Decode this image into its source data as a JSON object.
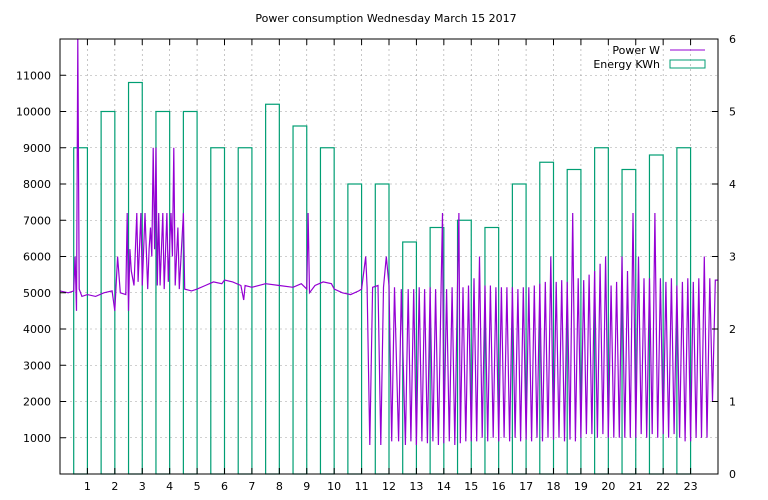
{
  "chart_data": {
    "type": "line",
    "title": "Power consumption Wednesday March 15 2017",
    "xlabel": "",
    "ylabel": "",
    "y2label": "",
    "grid": true,
    "legend_position": "top-right",
    "xlim": [
      0,
      24
    ],
    "ylim": [
      0,
      12000
    ],
    "y2lim": [
      0,
      6
    ],
    "x_ticks": [
      1,
      2,
      3,
      4,
      5,
      6,
      7,
      8,
      9,
      10,
      11,
      12,
      13,
      14,
      15,
      16,
      17,
      18,
      19,
      20,
      21,
      22,
      23
    ],
    "y_ticks": [
      1000,
      2000,
      3000,
      4000,
      5000,
      6000,
      7000,
      8000,
      9000,
      10000,
      11000
    ],
    "y2_ticks": [
      0,
      1,
      2,
      3,
      4,
      5,
      6
    ],
    "series": [
      {
        "name": "Power W",
        "axis": "y",
        "color": "#9400d3",
        "style": "line",
        "points": [
          [
            0,
            5050
          ],
          [
            0.3,
            5000
          ],
          [
            0.5,
            5050
          ],
          [
            0.55,
            6000
          ],
          [
            0.6,
            4500
          ],
          [
            0.65,
            12000
          ],
          [
            0.7,
            5100
          ],
          [
            0.8,
            4900
          ],
          [
            1.0,
            4950
          ],
          [
            1.3,
            4900
          ],
          [
            1.6,
            5000
          ],
          [
            1.9,
            5050
          ],
          [
            2.0,
            4500
          ],
          [
            2.1,
            6000
          ],
          [
            2.2,
            5000
          ],
          [
            2.4,
            4950
          ],
          [
            2.45,
            7200
          ],
          [
            2.5,
            4500
          ],
          [
            2.55,
            6200
          ],
          [
            2.6,
            5600
          ],
          [
            2.7,
            5200
          ],
          [
            2.8,
            7200
          ],
          [
            2.85,
            5300
          ],
          [
            2.95,
            7200
          ],
          [
            3.0,
            5200
          ],
          [
            3.1,
            7200
          ],
          [
            3.2,
            5100
          ],
          [
            3.25,
            6200
          ],
          [
            3.3,
            6800
          ],
          [
            3.35,
            6000
          ],
          [
            3.4,
            9000
          ],
          [
            3.45,
            6200
          ],
          [
            3.5,
            9000
          ],
          [
            3.55,
            5200
          ],
          [
            3.6,
            7200
          ],
          [
            3.65,
            5200
          ],
          [
            3.75,
            7200
          ],
          [
            3.8,
            5100
          ],
          [
            3.9,
            7200
          ],
          [
            3.95,
            5300
          ],
          [
            4.05,
            7200
          ],
          [
            4.1,
            6000
          ],
          [
            4.15,
            9000
          ],
          [
            4.2,
            5200
          ],
          [
            4.3,
            6800
          ],
          [
            4.35,
            5100
          ],
          [
            4.5,
            7200
          ],
          [
            4.55,
            5100
          ],
          [
            4.8,
            5050
          ],
          [
            5.0,
            5100
          ],
          [
            5.3,
            5200
          ],
          [
            5.6,
            5300
          ],
          [
            5.9,
            5250
          ],
          [
            6.0,
            5350
          ],
          [
            6.3,
            5300
          ],
          [
            6.6,
            5200
          ],
          [
            6.7,
            4800
          ],
          [
            6.75,
            5200
          ],
          [
            7.0,
            5150
          ],
          [
            7.5,
            5250
          ],
          [
            8.0,
            5200
          ],
          [
            8.5,
            5150
          ],
          [
            8.8,
            5250
          ],
          [
            9.0,
            5100
          ],
          [
            9.05,
            7200
          ],
          [
            9.1,
            5000
          ],
          [
            9.3,
            5200
          ],
          [
            9.6,
            5300
          ],
          [
            9.9,
            5250
          ],
          [
            10.0,
            5100
          ],
          [
            10.3,
            5000
          ],
          [
            10.6,
            4950
          ],
          [
            10.9,
            5050
          ],
          [
            11.0,
            5100
          ],
          [
            11.15,
            6000
          ],
          [
            11.2,
            5150
          ],
          [
            11.3,
            800
          ],
          [
            11.4,
            5150
          ],
          [
            11.6,
            5200
          ],
          [
            11.7,
            800
          ],
          [
            11.8,
            5150
          ],
          [
            11.9,
            6000
          ],
          [
            12.0,
            5200
          ],
          [
            12.1,
            900
          ],
          [
            12.2,
            5150
          ],
          [
            12.35,
            900
          ],
          [
            12.45,
            5100
          ],
          [
            12.6,
            800
          ],
          [
            12.7,
            5100
          ],
          [
            12.8,
            900
          ],
          [
            12.9,
            5100
          ],
          [
            13.0,
            800
          ],
          [
            13.1,
            5150
          ],
          [
            13.2,
            900
          ],
          [
            13.3,
            5100
          ],
          [
            13.4,
            850
          ],
          [
            13.5,
            5150
          ],
          [
            13.6,
            900
          ],
          [
            13.7,
            5100
          ],
          [
            13.8,
            800
          ],
          [
            13.9,
            5150
          ],
          [
            13.95,
            7200
          ],
          [
            14.0,
            850
          ],
          [
            14.1,
            5100
          ],
          [
            14.2,
            900
          ],
          [
            14.3,
            5150
          ],
          [
            14.4,
            800
          ],
          [
            14.5,
            5200
          ],
          [
            14.55,
            7200
          ],
          [
            14.6,
            850
          ],
          [
            14.7,
            5150
          ],
          [
            14.8,
            900
          ],
          [
            14.9,
            5200
          ],
          [
            15.0,
            900
          ],
          [
            15.1,
            5400
          ],
          [
            15.2,
            900
          ],
          [
            15.3,
            6000
          ],
          [
            15.4,
            1000
          ],
          [
            15.5,
            5200
          ],
          [
            15.6,
            900
          ],
          [
            15.7,
            5200
          ],
          [
            15.8,
            1000
          ],
          [
            15.9,
            5150
          ],
          [
            16.0,
            900
          ],
          [
            16.1,
            5150
          ],
          [
            16.2,
            1000
          ],
          [
            16.3,
            5150
          ],
          [
            16.4,
            900
          ],
          [
            16.5,
            5150
          ],
          [
            16.6,
            1000
          ],
          [
            16.7,
            5100
          ],
          [
            16.8,
            900
          ],
          [
            16.9,
            5150
          ],
          [
            17.0,
            950
          ],
          [
            17.1,
            5150
          ],
          [
            17.2,
            900
          ],
          [
            17.3,
            5200
          ],
          [
            17.4,
            1000
          ],
          [
            17.5,
            5250
          ],
          [
            17.6,
            900
          ],
          [
            17.7,
            5300
          ],
          [
            17.8,
            1000
          ],
          [
            17.9,
            6000
          ],
          [
            18.0,
            950
          ],
          [
            18.1,
            5300
          ],
          [
            18.2,
            1000
          ],
          [
            18.3,
            5350
          ],
          [
            18.4,
            900
          ],
          [
            18.5,
            5300
          ],
          [
            18.6,
            950
          ],
          [
            18.7,
            7200
          ],
          [
            18.8,
            900
          ],
          [
            18.9,
            5400
          ],
          [
            19.0,
            1000
          ],
          [
            19.1,
            5350
          ],
          [
            19.2,
            1100
          ],
          [
            19.3,
            5500
          ],
          [
            19.4,
            1100
          ],
          [
            19.5,
            5600
          ],
          [
            19.6,
            1000
          ],
          [
            19.7,
            5800
          ],
          [
            19.8,
            1100
          ],
          [
            19.9,
            6000
          ],
          [
            20.0,
            1000
          ],
          [
            20.1,
            5200
          ],
          [
            20.2,
            1000
          ],
          [
            20.3,
            5300
          ],
          [
            20.4,
            1000
          ],
          [
            20.5,
            6000
          ],
          [
            20.6,
            1000
          ],
          [
            20.7,
            5600
          ],
          [
            20.8,
            1000
          ],
          [
            20.9,
            7200
          ],
          [
            21.0,
            1000
          ],
          [
            21.1,
            6000
          ],
          [
            21.2,
            1100
          ],
          [
            21.3,
            5400
          ],
          [
            21.4,
            1000
          ],
          [
            21.5,
            5400
          ],
          [
            21.6,
            1100
          ],
          [
            21.7,
            7200
          ],
          [
            21.8,
            1000
          ],
          [
            21.9,
            5400
          ],
          [
            22.0,
            1100
          ],
          [
            22.1,
            5300
          ],
          [
            22.2,
            1000
          ],
          [
            22.3,
            5400
          ],
          [
            22.4,
            1100
          ],
          [
            22.5,
            5200
          ],
          [
            22.6,
            1000
          ],
          [
            22.7,
            5300
          ],
          [
            22.8,
            900
          ],
          [
            22.9,
            5400
          ],
          [
            23.0,
            900
          ],
          [
            23.1,
            5300
          ],
          [
            23.2,
            1000
          ],
          [
            23.3,
            5400
          ],
          [
            23.4,
            1000
          ],
          [
            23.5,
            6000
          ],
          [
            23.6,
            1000
          ],
          [
            23.7,
            5400
          ],
          [
            23.8,
            2000
          ],
          [
            23.9,
            5350
          ],
          [
            24.0,
            5350
          ]
        ]
      },
      {
        "name": "Energy KWh",
        "axis": "y2",
        "color": "#009e73",
        "style": "bars",
        "bar_width": 0.5,
        "x": [
          0.75,
          1.75,
          2.75,
          3.75,
          4.75,
          5.75,
          6.75,
          7.75,
          8.75,
          9.75,
          10.75,
          11.75,
          12.75,
          13.75,
          14.75,
          15.75,
          16.75,
          17.75,
          18.75,
          19.75,
          20.75,
          21.75,
          22.75
        ],
        "values": [
          4.5,
          5.0,
          5.4,
          5.0,
          5.0,
          4.5,
          4.5,
          5.1,
          4.8,
          4.5,
          4.0,
          4.0,
          3.2,
          3.4,
          3.5,
          3.4,
          4.0,
          4.3,
          4.2,
          4.5,
          4.2,
          4.4,
          4.5
        ]
      }
    ]
  }
}
